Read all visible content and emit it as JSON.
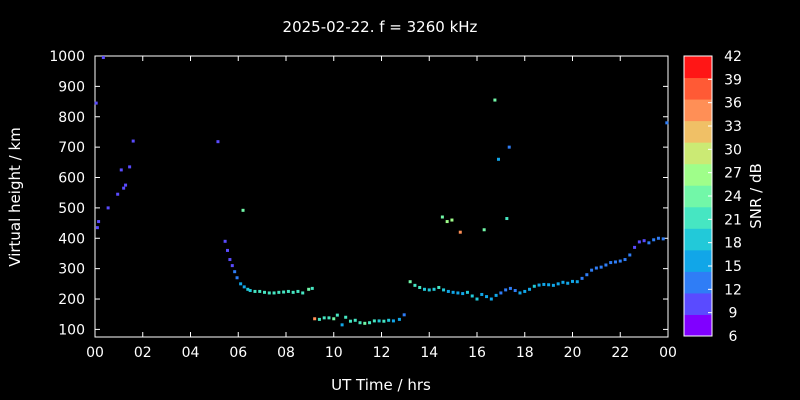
{
  "chart_data": {
    "type": "scatter",
    "title": "2025-02-22. f = 3260 kHz",
    "xlabel": "UT Time / hrs",
    "ylabel": "Virtual height / km",
    "colorbar_label": "SNR / dB",
    "xlim": [
      0,
      24
    ],
    "ylim": [
      75,
      1000
    ],
    "x_ticks": [
      "00",
      "02",
      "04",
      "06",
      "08",
      "10",
      "12",
      "14",
      "16",
      "18",
      "20",
      "22",
      "00"
    ],
    "y_ticks": [
      "100",
      "200",
      "300",
      "400",
      "500",
      "600",
      "700",
      "800",
      "900",
      "1000"
    ],
    "colorbar_ticks": [
      "6",
      "9",
      "12",
      "15",
      "18",
      "21",
      "24",
      "27",
      "30",
      "33",
      "36",
      "39",
      "42"
    ],
    "snr_range": [
      6,
      42
    ],
    "colorbar_colors": [
      "#8000ff",
      "#5a4bff",
      "#2f7df6",
      "#11a6e8",
      "#22c9d9",
      "#46e6c2",
      "#72f7a8",
      "#9ffe8a",
      "#cbea74",
      "#f0c066",
      "#ff8f56",
      "#ff5a35",
      "#ff1616"
    ],
    "grid": false,
    "points": [
      [
        0.05,
        845,
        10
      ],
      [
        0.1,
        435,
        10
      ],
      [
        0.15,
        455,
        10
      ],
      [
        0.35,
        995,
        10
      ],
      [
        0.55,
        500,
        10
      ],
      [
        0.95,
        545,
        10
      ],
      [
        1.1,
        625,
        10
      ],
      [
        1.2,
        565,
        10
      ],
      [
        1.28,
        575,
        10
      ],
      [
        1.45,
        635,
        10
      ],
      [
        1.6,
        720,
        10
      ],
      [
        5.15,
        718,
        10
      ],
      [
        5.45,
        390,
        10
      ],
      [
        5.55,
        360,
        10
      ],
      [
        5.65,
        330,
        10
      ],
      [
        5.75,
        310,
        11
      ],
      [
        5.85,
        290,
        12
      ],
      [
        5.95,
        270,
        13
      ],
      [
        6.1,
        250,
        15
      ],
      [
        6.25,
        240,
        16
      ],
      [
        6.4,
        232,
        18
      ],
      [
        6.5,
        228,
        19
      ],
      [
        6.7,
        225,
        20
      ],
      [
        6.9,
        225,
        20
      ],
      [
        7.1,
        222,
        21
      ],
      [
        7.3,
        220,
        21
      ],
      [
        7.5,
        220,
        21
      ],
      [
        7.7,
        222,
        21
      ],
      [
        7.9,
        223,
        22
      ],
      [
        8.1,
        225,
        22
      ],
      [
        8.3,
        222,
        22
      ],
      [
        8.5,
        225,
        22
      ],
      [
        8.7,
        220,
        22
      ],
      [
        8.95,
        232,
        23
      ],
      [
        9.1,
        235,
        22
      ],
      [
        6.2,
        492,
        25
      ],
      [
        9.2,
        135,
        35
      ],
      [
        9.4,
        133,
        20
      ],
      [
        9.6,
        138,
        20
      ],
      [
        9.8,
        138,
        22
      ],
      [
        10.0,
        135,
        23
      ],
      [
        10.15,
        147,
        21
      ],
      [
        10.35,
        115,
        15
      ],
      [
        10.5,
        140,
        20
      ],
      [
        10.7,
        127,
        20
      ],
      [
        10.9,
        130,
        20
      ],
      [
        11.1,
        122,
        22
      ],
      [
        11.3,
        120,
        23
      ],
      [
        11.5,
        122,
        22
      ],
      [
        11.7,
        128,
        20
      ],
      [
        11.9,
        128,
        18
      ],
      [
        12.1,
        127,
        20
      ],
      [
        12.3,
        130,
        18
      ],
      [
        12.5,
        128,
        17
      ],
      [
        12.75,
        133,
        16
      ],
      [
        12.95,
        148,
        14
      ],
      [
        13.2,
        257,
        25
      ],
      [
        13.4,
        245,
        22
      ],
      [
        13.6,
        238,
        20
      ],
      [
        13.8,
        232,
        19
      ],
      [
        14.0,
        230,
        19
      ],
      [
        14.2,
        232,
        19
      ],
      [
        14.4,
        238,
        20
      ],
      [
        14.6,
        230,
        18
      ],
      [
        14.8,
        225,
        17
      ],
      [
        15.0,
        222,
        17
      ],
      [
        15.2,
        220,
        17
      ],
      [
        15.4,
        218,
        17
      ],
      [
        15.6,
        222,
        18
      ],
      [
        15.8,
        210,
        19
      ],
      [
        16.0,
        200,
        18
      ],
      [
        16.2,
        215,
        17
      ],
      [
        16.4,
        208,
        16
      ],
      [
        16.6,
        200,
        15
      ],
      [
        16.8,
        212,
        15
      ],
      [
        17.0,
        220,
        14
      ],
      [
        17.2,
        230,
        14
      ],
      [
        17.4,
        235,
        13
      ],
      [
        17.6,
        228,
        14
      ],
      [
        17.8,
        220,
        15
      ],
      [
        18.0,
        225,
        16
      ],
      [
        18.2,
        232,
        17
      ],
      [
        18.4,
        242,
        18
      ],
      [
        18.6,
        246,
        17
      ],
      [
        18.8,
        248,
        16
      ],
      [
        19.0,
        247,
        16
      ],
      [
        19.2,
        245,
        16
      ],
      [
        19.4,
        250,
        16
      ],
      [
        19.6,
        255,
        15
      ],
      [
        19.8,
        252,
        15
      ],
      [
        20.0,
        258,
        15
      ],
      [
        20.2,
        257,
        15
      ],
      [
        20.4,
        268,
        14
      ],
      [
        20.6,
        280,
        14
      ],
      [
        20.8,
        295,
        13
      ],
      [
        21.0,
        302,
        13
      ],
      [
        21.2,
        305,
        13
      ],
      [
        21.4,
        312,
        12
      ],
      [
        21.6,
        320,
        12
      ],
      [
        21.8,
        322,
        12
      ],
      [
        22.0,
        325,
        12
      ],
      [
        22.2,
        330,
        12
      ],
      [
        22.4,
        345,
        12
      ],
      [
        22.6,
        370,
        11
      ],
      [
        22.8,
        388,
        11
      ],
      [
        23.0,
        392,
        11
      ],
      [
        23.2,
        385,
        12
      ],
      [
        23.4,
        395,
        12
      ],
      [
        23.6,
        400,
        13
      ],
      [
        23.8,
        398,
        13
      ],
      [
        23.95,
        780,
        14
      ],
      [
        14.55,
        470,
        25
      ],
      [
        14.75,
        455,
        27
      ],
      [
        14.95,
        460,
        28
      ],
      [
        15.3,
        420,
        34
      ],
      [
        16.3,
        428,
        24
      ],
      [
        16.75,
        855,
        24
      ],
      [
        16.9,
        660,
        15
      ],
      [
        17.25,
        465,
        22
      ],
      [
        17.35,
        700,
        14
      ]
    ]
  }
}
